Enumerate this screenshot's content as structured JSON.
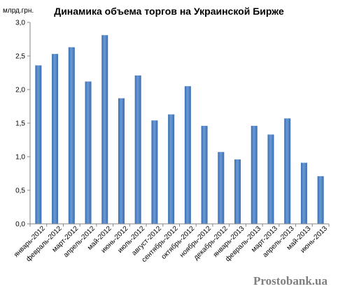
{
  "chart_data": {
    "type": "bar",
    "title": "Динамика объема торгов на Украинской Бирже",
    "unit_label": "млрд.грн.",
    "ylim": [
      0,
      3.0
    ],
    "y_ticks": [
      "0,0",
      "0,5",
      "1,0",
      "1,5",
      "2,0",
      "2,5",
      "3,0"
    ],
    "grid": false,
    "legend": "none",
    "categories": [
      "январь-2012",
      "февраль-2012",
      "март-2012",
      "апрель-2012",
      "май-2012",
      "июнь-2012",
      "июль-2012",
      "август-2012",
      "сентябрь-2012",
      "октябрь-2012",
      "ноябрь-2012",
      "декабрь-2012",
      "январь-2013",
      "февраль-2013",
      "март-2013",
      "апрель-2013",
      "май-2013",
      "июнь-2013"
    ],
    "values": [
      2.36,
      2.53,
      2.63,
      2.12,
      2.81,
      1.87,
      2.21,
      1.54,
      1.63,
      2.05,
      1.46,
      1.07,
      0.96,
      1.46,
      1.33,
      1.57,
      0.91,
      0.71
    ],
    "bar_color": "#4f81bd"
  },
  "watermark": "Prostobank.ua"
}
